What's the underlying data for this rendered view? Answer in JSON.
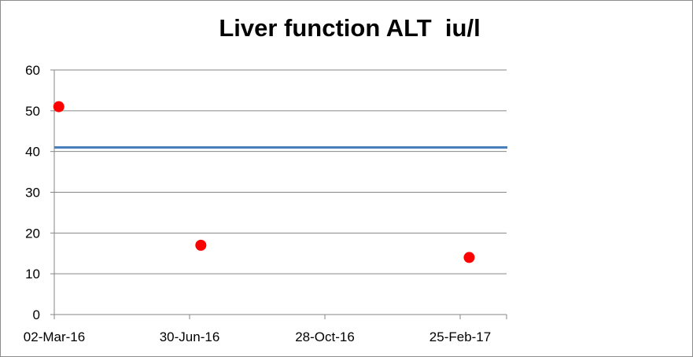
{
  "chart_data": {
    "type": "scatter",
    "title": "Liver function ALT  iu/l",
    "xlabel": "",
    "ylabel": "",
    "xlim": [
      "2016-02-25",
      "2017-03-27"
    ],
    "ylim": [
      0,
      60
    ],
    "x_ticks": [
      "02-Mar-16",
      "30-Jun-16",
      "28-Oct-16",
      "25-Feb-17"
    ],
    "y_ticks": [
      0,
      10,
      20,
      30,
      40,
      50,
      60
    ],
    "grid": true,
    "legend": "none",
    "reference_line": {
      "y": 41,
      "color": "#4a7ebb"
    },
    "series": [
      {
        "color": "#ff0000",
        "points": [
          {
            "x": "2016-03-06",
            "y": 51
          },
          {
            "x": "2016-07-10",
            "y": 17
          },
          {
            "x": "2017-03-05",
            "y": 14
          }
        ]
      }
    ]
  }
}
